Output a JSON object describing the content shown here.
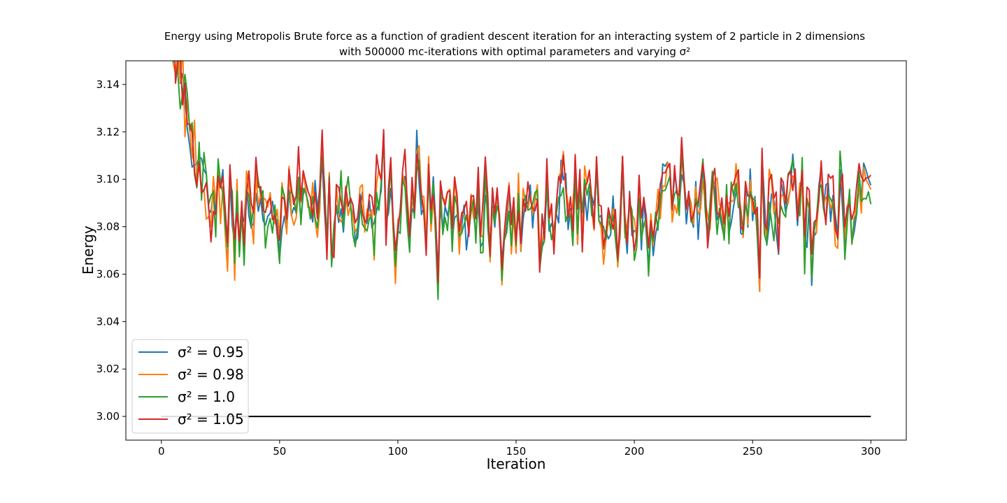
{
  "chart_data": {
    "type": "line",
    "title_line1": "Energy using Metropolis Brute force as a function of gradient descent iteration for an interacting system of 2 particle in 2 dimensions",
    "title_line2": "with 500000 mc-iterations with optimal parameters and varying σ²",
    "xlabel": "Iteration",
    "ylabel": "Energy",
    "xlim": [
      -15,
      315
    ],
    "ylim": [
      2.99,
      3.15
    ],
    "xticks": [
      0,
      50,
      100,
      150,
      200,
      250,
      300
    ],
    "yticks": [
      3.0,
      3.02,
      3.04,
      3.06,
      3.08,
      3.1,
      3.12,
      3.14
    ],
    "legend_position": "lower-left",
    "grid": false,
    "reference_line": {
      "y": 3.0,
      "x_start": 0,
      "x_end": 300,
      "color": "#000000"
    },
    "series": [
      {
        "name": "σ² = 0.95",
        "color": "#1f77b4",
        "seed": 11,
        "offset": 0.0
      },
      {
        "name": "σ² = 0.98",
        "color": "#ff7f0e",
        "seed": 23,
        "offset": 0.001
      },
      {
        "name": "σ² = 1.0",
        "color": "#2ca02c",
        "seed": 37,
        "offset": 0.0
      },
      {
        "name": "σ² = 1.05",
        "color": "#d62728",
        "seed": 53,
        "offset": 0.004
      }
    ]
  }
}
